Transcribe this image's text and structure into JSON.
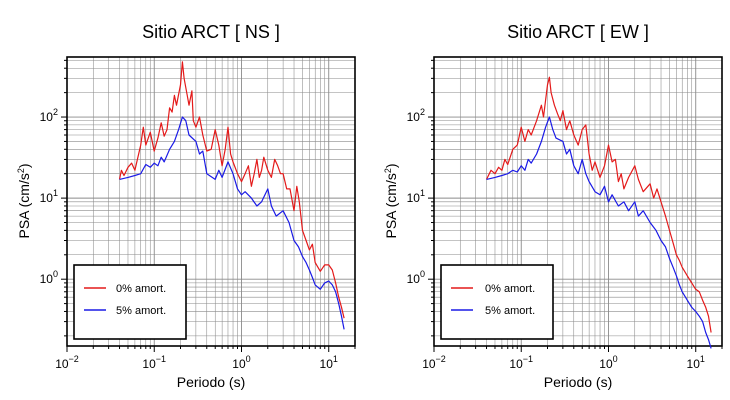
{
  "chart_data": [
    {
      "type": "line",
      "title": "Sitio ARCT [ NS ]",
      "xlabel": "Periodo (s)",
      "ylabel": "PSA (cm/s2)",
      "x_scale": "log",
      "y_scale": "log",
      "xlim": [
        0.01,
        20
      ],
      "ylim": [
        0.15,
        550
      ],
      "grid": true,
      "legend_position": "lower-left",
      "x_ticks": [
        {
          "value": 0.01,
          "base": "10",
          "exp": "−2"
        },
        {
          "value": 0.1,
          "base": "10",
          "exp": "−1"
        },
        {
          "value": 1,
          "base": "10",
          "exp": "0"
        },
        {
          "value": 10,
          "base": "10",
          "exp": "1"
        }
      ],
      "y_ticks": [
        {
          "value": 1,
          "base": "10",
          "exp": "0"
        },
        {
          "value": 10,
          "base": "10",
          "exp": "1"
        },
        {
          "value": 100,
          "base": "10",
          "exp": "2"
        }
      ],
      "series": [
        {
          "name": "0% amort.",
          "color": "#e41a1a",
          "points": [
            [
              0.04,
              17
            ],
            [
              0.042,
              22
            ],
            [
              0.045,
              19
            ],
            [
              0.05,
              24
            ],
            [
              0.055,
              27
            ],
            [
              0.06,
              22
            ],
            [
              0.065,
              32
            ],
            [
              0.07,
              45
            ],
            [
              0.075,
              75
            ],
            [
              0.08,
              45
            ],
            [
              0.09,
              65
            ],
            [
              0.1,
              38
            ],
            [
              0.11,
              55
            ],
            [
              0.12,
              85
            ],
            [
              0.13,
              58
            ],
            [
              0.14,
              70
            ],
            [
              0.15,
              130
            ],
            [
              0.16,
              115
            ],
            [
              0.17,
              185
            ],
            [
              0.18,
              140
            ],
            [
              0.2,
              250
            ],
            [
              0.21,
              480
            ],
            [
              0.22,
              300
            ],
            [
              0.24,
              180
            ],
            [
              0.25,
              140
            ],
            [
              0.27,
              210
            ],
            [
              0.28,
              90
            ],
            [
              0.3,
              75
            ],
            [
              0.33,
              100
            ],
            [
              0.36,
              60
            ],
            [
              0.4,
              38
            ],
            [
              0.45,
              40
            ],
            [
              0.5,
              70
            ],
            [
              0.55,
              45
            ],
            [
              0.6,
              25
            ],
            [
              0.65,
              40
            ],
            [
              0.7,
              75
            ],
            [
              0.75,
              35
            ],
            [
              0.8,
              28
            ],
            [
              0.9,
              20
            ],
            [
              1.0,
              16
            ],
            [
              1.1,
              20
            ],
            [
              1.2,
              25
            ],
            [
              1.3,
              14
            ],
            [
              1.4,
              20
            ],
            [
              1.5,
              30
            ],
            [
              1.6,
              18
            ],
            [
              1.7,
              22
            ],
            [
              1.8,
              32
            ],
            [
              2.0,
              22
            ],
            [
              2.2,
              18
            ],
            [
              2.4,
              30
            ],
            [
              2.6,
              25
            ],
            [
              2.8,
              20
            ],
            [
              3.0,
              20
            ],
            [
              3.3,
              13
            ],
            [
              3.6,
              13
            ],
            [
              4.0,
              7
            ],
            [
              4.3,
              14
            ],
            [
              4.6,
              9
            ],
            [
              5.0,
              4
            ],
            [
              5.5,
              3
            ],
            [
              6.0,
              2.3
            ],
            [
              6.5,
              2.7
            ],
            [
              7.0,
              1.6
            ],
            [
              8.0,
              1.25
            ],
            [
              9.0,
              1.5
            ],
            [
              10,
              1.5
            ],
            [
              11,
              1.3
            ],
            [
              12,
              0.9
            ],
            [
              13,
              0.6
            ],
            [
              14,
              0.45
            ],
            [
              15,
              0.33
            ]
          ]
        },
        {
          "name": "5% amort.",
          "color": "#1a1ae6",
          "points": [
            [
              0.04,
              17
            ],
            [
              0.05,
              18
            ],
            [
              0.06,
              19
            ],
            [
              0.07,
              20
            ],
            [
              0.08,
              26
            ],
            [
              0.09,
              24
            ],
            [
              0.1,
              27
            ],
            [
              0.11,
              25
            ],
            [
              0.12,
              32
            ],
            [
              0.13,
              28
            ],
            [
              0.15,
              40
            ],
            [
              0.17,
              50
            ],
            [
              0.19,
              70
            ],
            [
              0.21,
              100
            ],
            [
              0.23,
              90
            ],
            [
              0.25,
              60
            ],
            [
              0.3,
              50
            ],
            [
              0.33,
              35
            ],
            [
              0.36,
              38
            ],
            [
              0.4,
              20
            ],
            [
              0.5,
              17
            ],
            [
              0.55,
              22
            ],
            [
              0.6,
              18
            ],
            [
              0.7,
              28
            ],
            [
              0.8,
              20
            ],
            [
              0.9,
              13
            ],
            [
              1.0,
              11
            ],
            [
              1.1,
              12
            ],
            [
              1.3,
              10
            ],
            [
              1.5,
              8
            ],
            [
              1.7,
              9
            ],
            [
              2.0,
              13
            ],
            [
              2.2,
              8
            ],
            [
              2.5,
              6
            ],
            [
              3.0,
              7
            ],
            [
              3.5,
              5
            ],
            [
              4.0,
              3
            ],
            [
              4.5,
              2.5
            ],
            [
              5.0,
              1.9
            ],
            [
              5.5,
              1.6
            ],
            [
              6.0,
              1.3
            ],
            [
              6.5,
              1.05
            ],
            [
              7.0,
              0.85
            ],
            [
              8.0,
              0.75
            ],
            [
              9.0,
              0.9
            ],
            [
              10,
              0.95
            ],
            [
              11,
              0.85
            ],
            [
              12,
              0.7
            ],
            [
              13,
              0.5
            ],
            [
              14,
              0.35
            ],
            [
              15,
              0.24
            ]
          ]
        }
      ]
    },
    {
      "type": "line",
      "title": "Sitio ARCT [ EW ]",
      "xlabel": "Periodo (s)",
      "ylabel": "PSA (cm/s2)",
      "x_scale": "log",
      "y_scale": "log",
      "xlim": [
        0.01,
        20
      ],
      "ylim": [
        0.15,
        550
      ],
      "grid": true,
      "legend_position": "lower-left",
      "x_ticks": [
        {
          "value": 0.01,
          "base": "10",
          "exp": "−2"
        },
        {
          "value": 0.1,
          "base": "10",
          "exp": "−1"
        },
        {
          "value": 1,
          "base": "10",
          "exp": "0"
        },
        {
          "value": 10,
          "base": "10",
          "exp": "1"
        }
      ],
      "y_ticks": [
        {
          "value": 1,
          "base": "10",
          "exp": "0"
        },
        {
          "value": 10,
          "base": "10",
          "exp": "1"
        },
        {
          "value": 100,
          "base": "10",
          "exp": "2"
        }
      ],
      "series": [
        {
          "name": "0% amort.",
          "color": "#e41a1a",
          "points": [
            [
              0.04,
              17
            ],
            [
              0.045,
              22
            ],
            [
              0.05,
              20
            ],
            [
              0.055,
              24
            ],
            [
              0.06,
              22
            ],
            [
              0.065,
              30
            ],
            [
              0.07,
              26
            ],
            [
              0.08,
              40
            ],
            [
              0.09,
              45
            ],
            [
              0.1,
              75
            ],
            [
              0.11,
              50
            ],
            [
              0.12,
              70
            ],
            [
              0.13,
              60
            ],
            [
              0.15,
              90
            ],
            [
              0.17,
              140
            ],
            [
              0.18,
              100
            ],
            [
              0.2,
              250
            ],
            [
              0.21,
              310
            ],
            [
              0.22,
              200
            ],
            [
              0.24,
              140
            ],
            [
              0.26,
              110
            ],
            [
              0.28,
              90
            ],
            [
              0.3,
              120
            ],
            [
              0.33,
              70
            ],
            [
              0.36,
              90
            ],
            [
              0.4,
              60
            ],
            [
              0.45,
              45
            ],
            [
              0.5,
              70
            ],
            [
              0.55,
              80
            ],
            [
              0.6,
              35
            ],
            [
              0.65,
              22
            ],
            [
              0.7,
              28
            ],
            [
              0.8,
              18
            ],
            [
              0.9,
              25
            ],
            [
              1.0,
              45
            ],
            [
              1.1,
              28
            ],
            [
              1.2,
              30
            ],
            [
              1.3,
              16
            ],
            [
              1.4,
              20
            ],
            [
              1.5,
              13
            ],
            [
              1.7,
              18
            ],
            [
              2.0,
              25
            ],
            [
              2.2,
              17
            ],
            [
              2.5,
              12
            ],
            [
              3.0,
              15
            ],
            [
              3.3,
              10
            ],
            [
              3.6,
              13
            ],
            [
              4.0,
              9
            ],
            [
              4.5,
              6
            ],
            [
              5.0,
              4
            ],
            [
              5.5,
              2.8
            ],
            [
              6.0,
              2.0
            ],
            [
              6.5,
              1.7
            ],
            [
              7.0,
              1.4
            ],
            [
              8.0,
              1.1
            ],
            [
              9.0,
              0.9
            ],
            [
              10,
              0.75
            ],
            [
              11,
              0.7
            ],
            [
              12,
              0.55
            ],
            [
              13,
              0.45
            ],
            [
              14,
              0.35
            ],
            [
              15,
              0.22
            ]
          ]
        },
        {
          "name": "5% amort.",
          "color": "#1a1ae6",
          "points": [
            [
              0.04,
              17
            ],
            [
              0.05,
              18
            ],
            [
              0.06,
              19
            ],
            [
              0.07,
              20
            ],
            [
              0.08,
              22
            ],
            [
              0.09,
              21
            ],
            [
              0.1,
              25
            ],
            [
              0.11,
              22
            ],
            [
              0.12,
              30
            ],
            [
              0.13,
              27
            ],
            [
              0.15,
              35
            ],
            [
              0.17,
              50
            ],
            [
              0.19,
              75
            ],
            [
              0.21,
              100
            ],
            [
              0.23,
              70
            ],
            [
              0.25,
              55
            ],
            [
              0.3,
              50
            ],
            [
              0.33,
              35
            ],
            [
              0.36,
              40
            ],
            [
              0.4,
              25
            ],
            [
              0.45,
              20
            ],
            [
              0.5,
              30
            ],
            [
              0.55,
              20
            ],
            [
              0.6,
              16
            ],
            [
              0.7,
              12
            ],
            [
              0.8,
              11
            ],
            [
              0.9,
              14
            ],
            [
              1.0,
              9
            ],
            [
              1.1,
              11
            ],
            [
              1.3,
              8
            ],
            [
              1.5,
              9
            ],
            [
              1.7,
              7
            ],
            [
              2.0,
              9
            ],
            [
              2.2,
              6
            ],
            [
              2.5,
              7
            ],
            [
              3.0,
              5
            ],
            [
              3.5,
              4
            ],
            [
              4.0,
              3
            ],
            [
              4.5,
              2.5
            ],
            [
              5.0,
              1.8
            ],
            [
              5.5,
              1.4
            ],
            [
              6.0,
              1.1
            ],
            [
              6.5,
              0.85
            ],
            [
              7.0,
              0.7
            ],
            [
              8.0,
              0.55
            ],
            [
              9.0,
              0.45
            ],
            [
              10,
              0.4
            ],
            [
              11,
              0.35
            ],
            [
              12,
              0.3
            ],
            [
              13,
              0.22
            ],
            [
              14,
              0.18
            ],
            [
              15,
              0.14
            ]
          ]
        }
      ]
    }
  ]
}
